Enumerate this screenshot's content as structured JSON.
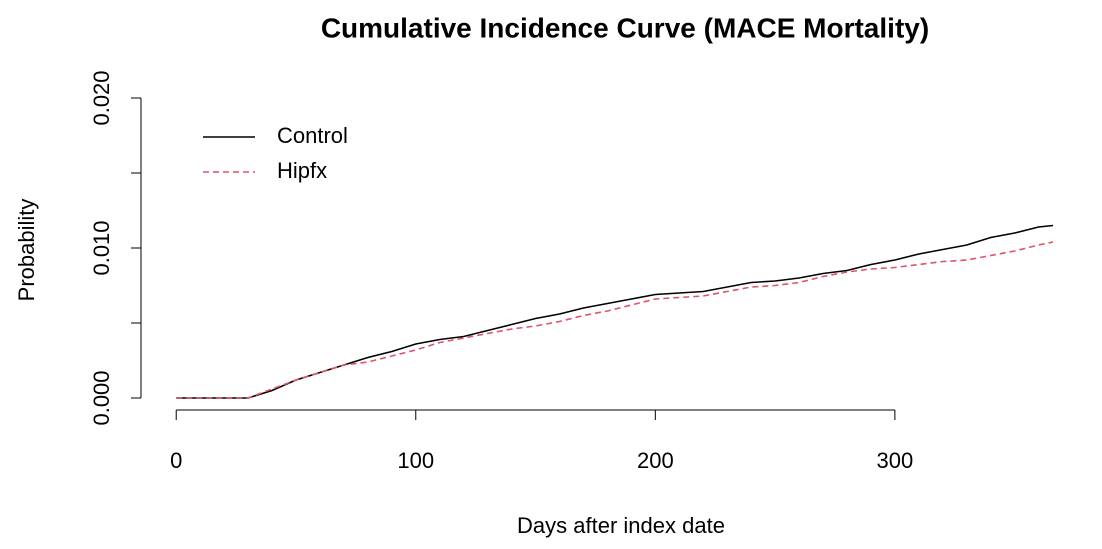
{
  "chart_data": {
    "type": "line",
    "title": "Cumulative Incidence Curve (MACE Mortality)",
    "x_label": "Days after index date",
    "y_label": "Probability",
    "x": [
      0,
      10,
      20,
      30,
      40,
      50,
      60,
      70,
      80,
      90,
      100,
      110,
      120,
      130,
      140,
      150,
      160,
      170,
      180,
      190,
      200,
      210,
      220,
      230,
      240,
      250,
      260,
      270,
      280,
      290,
      300,
      310,
      320,
      330,
      340,
      350,
      360,
      366
    ],
    "series": [
      {
        "name": "Control",
        "color": "#000000",
        "dash": false,
        "values": [
          0,
          0,
          0,
          0,
          0.0005,
          0.0012,
          0.0017,
          0.0022,
          0.0027,
          0.0031,
          0.0036,
          0.0039,
          0.0041,
          0.0045,
          0.0049,
          0.0053,
          0.0056,
          0.006,
          0.0063,
          0.0066,
          0.0069,
          0.007,
          0.0071,
          0.0074,
          0.0077,
          0.0078,
          0.008,
          0.0083,
          0.0085,
          0.0089,
          0.0092,
          0.0096,
          0.0099,
          0.0102,
          0.0107,
          0.011,
          0.0114,
          0.0115
        ]
      },
      {
        "name": "Hipfx",
        "color": "#DF536B",
        "dash": true,
        "values": [
          0,
          0,
          0,
          0,
          0.0006,
          0.0012,
          0.0017,
          0.0022,
          0.0024,
          0.0028,
          0.0032,
          0.0037,
          0.004,
          0.0043,
          0.0046,
          0.0048,
          0.0051,
          0.0055,
          0.0058,
          0.0062,
          0.0066,
          0.0067,
          0.0068,
          0.0071,
          0.0074,
          0.0075,
          0.0077,
          0.0081,
          0.0084,
          0.0086,
          0.0087,
          0.0089,
          0.0091,
          0.0092,
          0.0095,
          0.0098,
          0.0102,
          0.0104
        ]
      }
    ],
    "xlim": [
      -14.7,
      382.7
    ],
    "ylim": [
      -0.0008,
      0.0208
    ],
    "xticks": [
      0,
      100,
      200,
      300
    ],
    "yticks": [
      {
        "value": 0,
        "label": "0.000"
      },
      {
        "value": 0.005,
        "label": null
      },
      {
        "value": 0.01,
        "label": "0.010"
      },
      {
        "value": 0.015,
        "label": null
      },
      {
        "value": 0.02,
        "label": "0.020"
      }
    ],
    "legend": "topleft",
    "grid": false
  }
}
